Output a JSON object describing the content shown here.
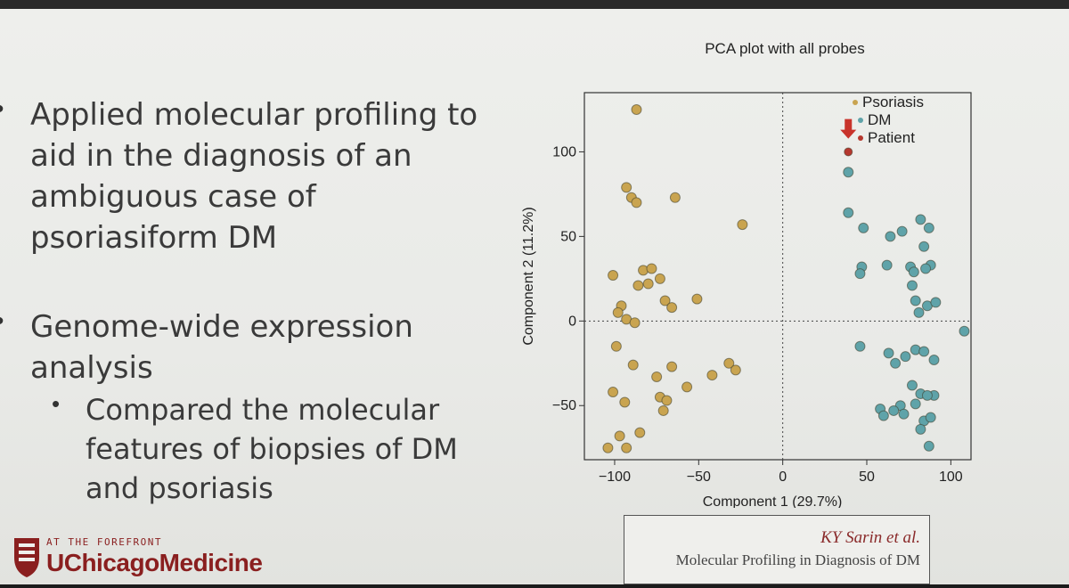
{
  "slide": {
    "bullets": [
      "Applied molecular profiling to aid in the diagnosis of an ambiguous case of psoriasiform DM",
      "Genome-wide expression analysis"
    ],
    "sub_bullets": [
      "Compared the molecular features of biopsies of DM and psoriasis"
    ],
    "citation": {
      "author": "KY Sarin et al.",
      "title": "Molecular Profiling in Diagnosis of DM"
    },
    "logo": {
      "tagline": "AT THE FOREFRONT",
      "name": "UChicagoMedicine"
    }
  },
  "colors": {
    "psoriasis": "#c9a450",
    "dm": "#5fa3a9",
    "patient": "#b5382f",
    "arrow": "#c8332b",
    "brand": "#8a1f1f"
  },
  "chart_data": {
    "type": "scatter",
    "title": "PCA plot with all probes",
    "xlabel": "Component 1 (29.7%)",
    "ylabel": "Component 2 (11.2%)",
    "xlim": [
      -118,
      112
    ],
    "ylim": [
      -82,
      135
    ],
    "xticks": [
      -100,
      -50,
      0,
      50,
      100
    ],
    "yticks": [
      100,
      50,
      0,
      -50
    ],
    "reference_lines": {
      "x": 0,
      "y": 0
    },
    "legend_position": "top-right",
    "series": [
      {
        "name": "Psoriasis",
        "points": [
          [
            -87,
            125
          ],
          [
            -93,
            79
          ],
          [
            -90,
            73
          ],
          [
            -87,
            70
          ],
          [
            -64,
            73
          ],
          [
            -24,
            57
          ],
          [
            -101,
            27
          ],
          [
            -83,
            30
          ],
          [
            -78,
            31
          ],
          [
            -86,
            21
          ],
          [
            -73,
            25
          ],
          [
            -80,
            22
          ],
          [
            -96,
            9
          ],
          [
            -98,
            5
          ],
          [
            -93,
            1
          ],
          [
            -88,
            -1
          ],
          [
            -70,
            12
          ],
          [
            -66,
            8
          ],
          [
            -51,
            13
          ],
          [
            -99,
            -15
          ],
          [
            -89,
            -26
          ],
          [
            -66,
            -27
          ],
          [
            -75,
            -33
          ],
          [
            -42,
            -32
          ],
          [
            -32,
            -25
          ],
          [
            -28,
            -29
          ],
          [
            -57,
            -39
          ],
          [
            -101,
            -42
          ],
          [
            -94,
            -48
          ],
          [
            -73,
            -45
          ],
          [
            -71,
            -53
          ],
          [
            -69,
            -47
          ],
          [
            -85,
            -66
          ],
          [
            -97,
            -68
          ],
          [
            -104,
            -75
          ],
          [
            -93,
            -75
          ]
        ]
      },
      {
        "name": "DM",
        "points": [
          [
            39,
            88
          ],
          [
            39,
            64
          ],
          [
            48,
            55
          ],
          [
            47,
            32
          ],
          [
            46,
            28
          ],
          [
            64,
            50
          ],
          [
            71,
            53
          ],
          [
            82,
            60
          ],
          [
            87,
            55
          ],
          [
            84,
            44
          ],
          [
            62,
            33
          ],
          [
            76,
            32
          ],
          [
            78,
            29
          ],
          [
            88,
            33
          ],
          [
            85,
            31
          ],
          [
            77,
            21
          ],
          [
            79,
            12
          ],
          [
            86,
            9
          ],
          [
            81,
            5
          ],
          [
            91,
            11
          ],
          [
            108,
            -6
          ],
          [
            46,
            -15
          ],
          [
            63,
            -19
          ],
          [
            73,
            -21
          ],
          [
            79,
            -17
          ],
          [
            84,
            -18
          ],
          [
            90,
            -23
          ],
          [
            67,
            -25
          ],
          [
            77,
            -38
          ],
          [
            82,
            -43
          ],
          [
            79,
            -49
          ],
          [
            90,
            -44
          ],
          [
            86,
            -44
          ],
          [
            70,
            -50
          ],
          [
            58,
            -52
          ],
          [
            60,
            -56
          ],
          [
            72,
            -55
          ],
          [
            84,
            -59
          ],
          [
            88,
            -57
          ],
          [
            66,
            -53
          ],
          [
            82,
            -64
          ],
          [
            87,
            -74
          ]
        ]
      },
      {
        "name": "Patient",
        "points": [
          [
            39,
            100
          ]
        ]
      }
    ],
    "annotations": [
      {
        "type": "arrow",
        "at": [
          39,
          112
        ],
        "direction": "down"
      }
    ]
  }
}
